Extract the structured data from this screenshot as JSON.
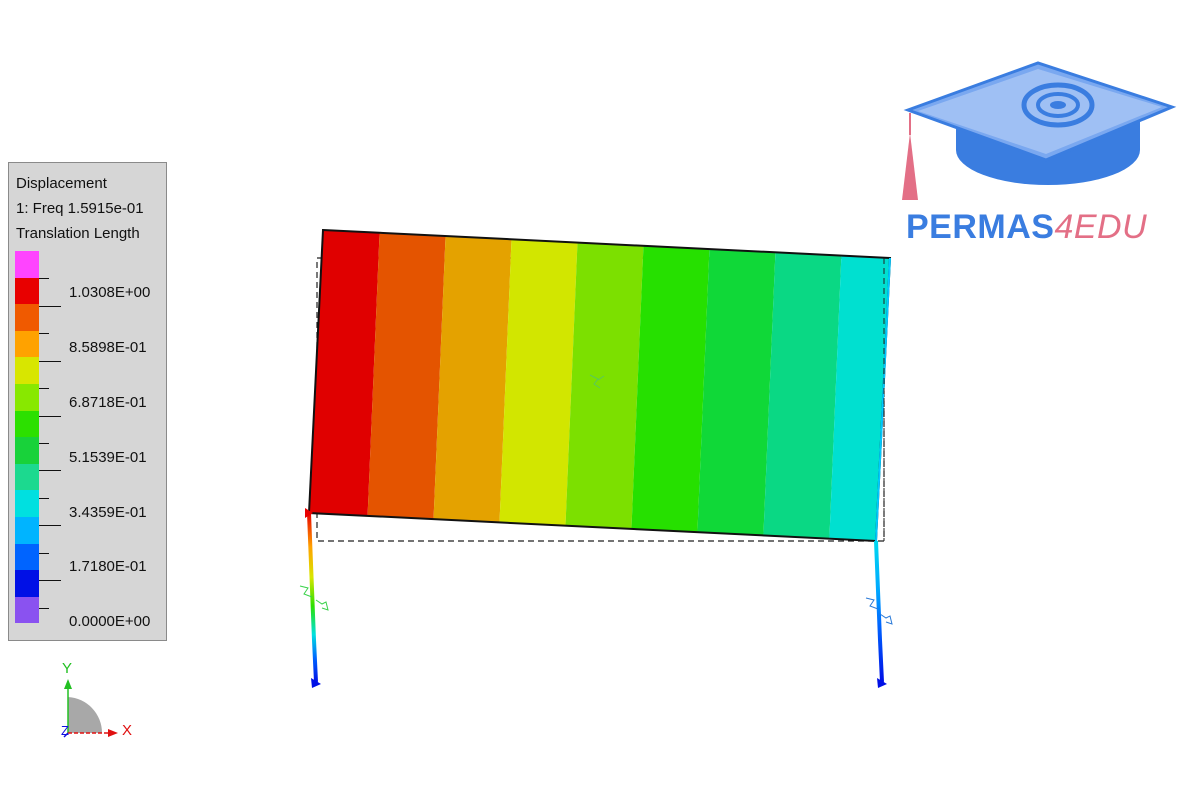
{
  "legend": {
    "title": "Displacement",
    "subtitle": "1: Freq 1.5915e-01",
    "quantity": "Translation Length",
    "colors": [
      "#ff44ff",
      "#e80000",
      "#f05a00",
      "#ffa200",
      "#d8e600",
      "#88e800",
      "#2ce000",
      "#18d23a",
      "#1cd98f",
      "#00e0e0",
      "#00b4ff",
      "#0064ff",
      "#0010e6",
      "#8a52f0"
    ],
    "labels": [
      "1.0308E+00",
      "8.5898E-01",
      "6.8718E-01",
      "5.1539E-01",
      "3.4359E-01",
      "1.7180E-01",
      "0.0000E+00"
    ]
  },
  "model": {
    "band_colors": [
      "#e00000",
      "#e45400",
      "#e4a200",
      "#d2e600",
      "#7ce000",
      "#26e000",
      "#10d838",
      "#0ad884",
      "#00e0d0"
    ]
  },
  "logo": {
    "text_part1": "PERMAS",
    "text_part2": "4EDU",
    "primary_color": "#3a7de0",
    "accent_color": "#e36f86"
  },
  "triad": {
    "y_label": "Y",
    "x_label": "X",
    "z_label": "Z"
  }
}
